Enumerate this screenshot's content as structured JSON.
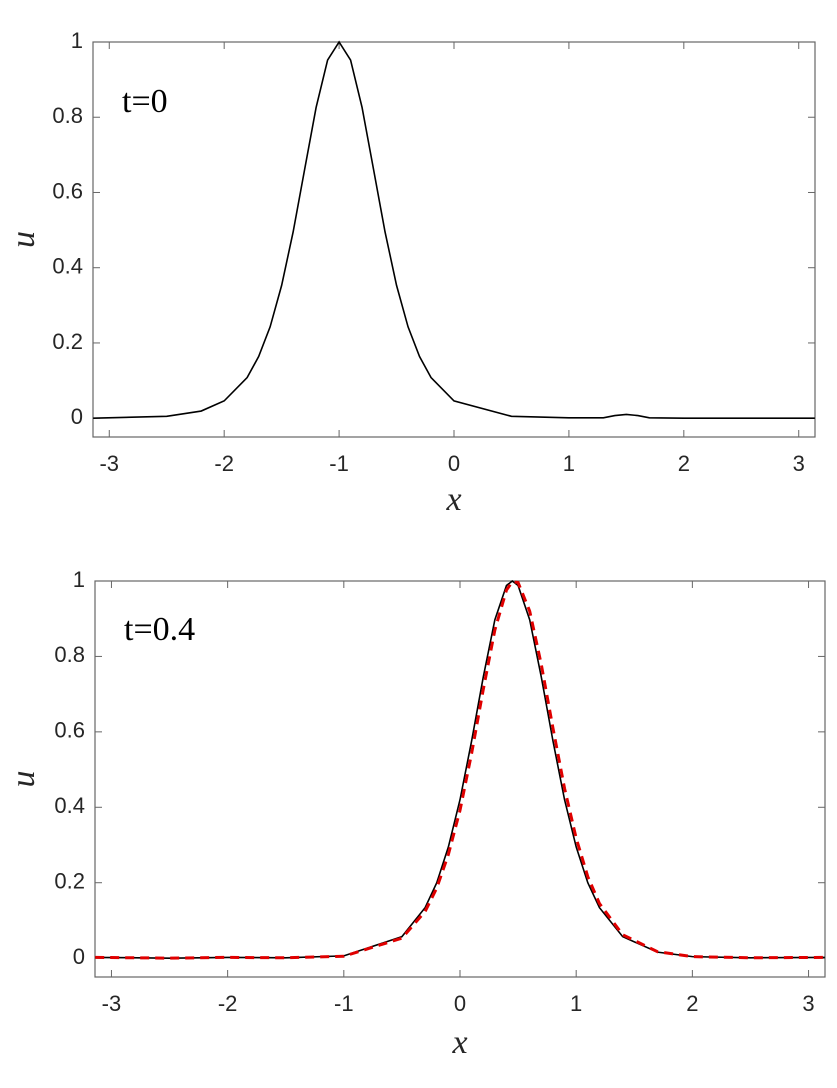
{
  "chart_data": [
    {
      "type": "line",
      "annotation": "t=0",
      "xlabel": "x",
      "ylabel": "u",
      "xlim": [
        -3.1416,
        3.1416
      ],
      "ylim": [
        -0.05,
        1
      ],
      "xticks": [
        -3,
        -2,
        -1,
        0,
        1,
        2,
        3
      ],
      "yticks": [
        0,
        0.2,
        0.4,
        0.6,
        0.8,
        1
      ],
      "x": [
        -3.14,
        -2.5,
        -2.2,
        -2,
        -1.8,
        -1.7,
        -1.6,
        -1.5,
        -1.4,
        -1.3,
        -1.2,
        -1.1,
        -1,
        -0.9,
        -0.8,
        -0.7,
        -0.6,
        -0.5,
        -0.4,
        -0.3,
        -0.2,
        0,
        0.5,
        1,
        1.3,
        1.4,
        1.5,
        1.6,
        1.7,
        2,
        2.5,
        3.14
      ],
      "series": [
        {
          "color": "#000000",
          "dashed": false,
          "values": [
            0,
            0.005,
            0.019,
            0.046,
            0.108,
            0.164,
            0.243,
            0.353,
            0.495,
            0.661,
            0.826,
            0.952,
            1,
            0.952,
            0.826,
            0.661,
            0.495,
            0.353,
            0.243,
            0.164,
            0.108,
            0.046,
            0.005,
            0.001,
            0.001,
            0.007,
            0.01,
            0.007,
            0.001,
            0,
            0,
            0
          ]
        }
      ]
    },
    {
      "type": "line",
      "annotation": "t=0.4",
      "xlabel": "x",
      "ylabel": "u",
      "xlim": [
        -3.1416,
        3.1416
      ],
      "ylim": [
        -0.05,
        1
      ],
      "xticks": [
        -3,
        -2,
        -1,
        0,
        1,
        2,
        3
      ],
      "yticks": [
        0,
        0.2,
        0.4,
        0.6,
        0.8,
        1
      ],
      "x": [
        -3.14,
        -2.5,
        -2,
        -1.5,
        -1,
        -0.5,
        -0.3,
        -0.2,
        -0.1,
        0,
        0.1,
        0.2,
        0.3,
        0.4,
        0.45,
        0.5,
        0.6,
        0.7,
        0.8,
        0.9,
        1,
        1.1,
        1.2,
        1.4,
        1.7,
        2,
        2.5,
        3.14
      ],
      "series": [
        {
          "color": "#000000",
          "dashed": false,
          "values": [
            0.002,
            0,
            0.002,
            0.001,
            0.006,
            0.057,
            0.134,
            0.2,
            0.295,
            0.42,
            0.576,
            0.745,
            0.897,
            0.988,
            1,
            0.988,
            0.897,
            0.745,
            0.576,
            0.42,
            0.295,
            0.2,
            0.134,
            0.057,
            0.016,
            0.004,
            0.001,
            0.002
          ]
        },
        {
          "color": "#e00000",
          "dashed": true,
          "values": [
            0.002,
            0,
            0.002,
            0.001,
            0.005,
            0.053,
            0.124,
            0.186,
            0.275,
            0.392,
            0.543,
            0.712,
            0.87,
            0.976,
            0.998,
            0.996,
            0.92,
            0.778,
            0.61,
            0.45,
            0.318,
            0.216,
            0.145,
            0.062,
            0.017,
            0.004,
            0.001,
            0.002
          ]
        }
      ]
    }
  ]
}
